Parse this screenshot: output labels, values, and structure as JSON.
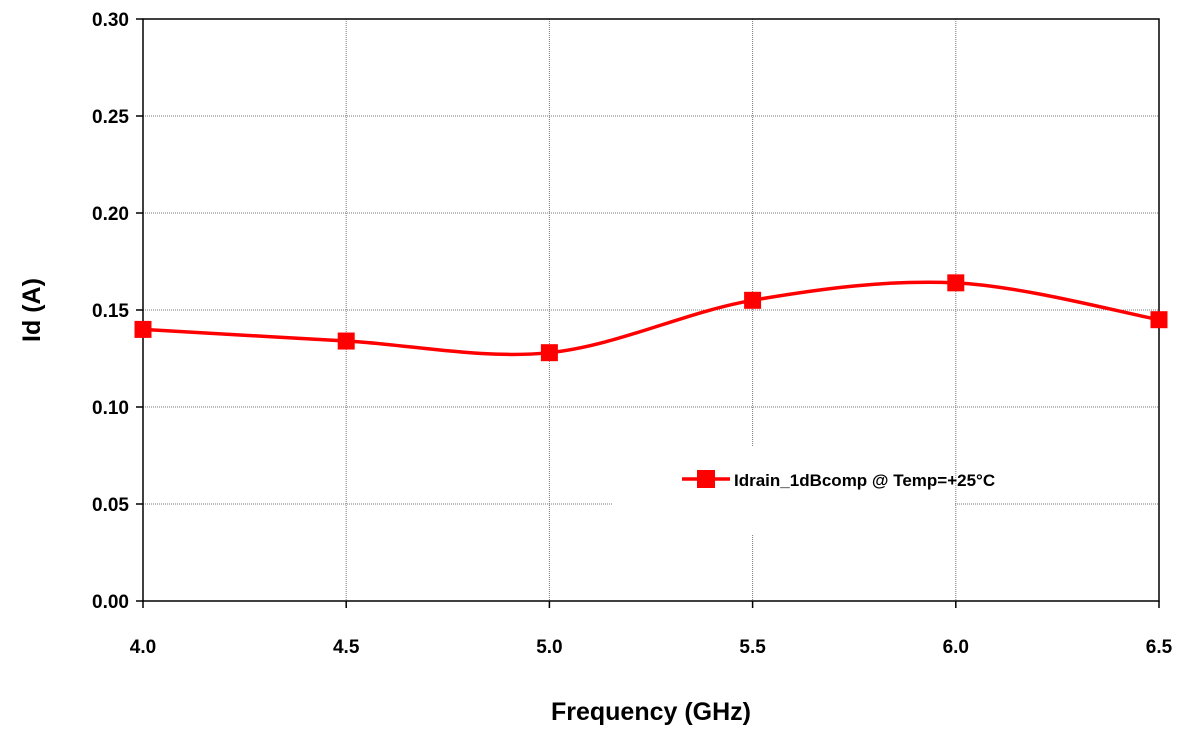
{
  "chart_data": {
    "type": "line",
    "title": "",
    "xlabel": "Frequency (GHz)",
    "ylabel": "Id (A)",
    "xlim": [
      4.0,
      6.5
    ],
    "ylim": [
      0.0,
      0.3
    ],
    "x_ticks": [
      "4.0",
      "4.5",
      "5.0",
      "5.5",
      "6.0",
      "6.5"
    ],
    "y_ticks": [
      "0.00",
      "0.05",
      "0.10",
      "0.15",
      "0.20",
      "0.25",
      "0.30"
    ],
    "grid": true,
    "legend_position": "right",
    "series": [
      {
        "name": "Idrain_1dBcomp @ Temp=+25°C",
        "color": "#ff0000",
        "marker": "square",
        "smooth": true,
        "x": [
          4.0,
          4.5,
          5.0,
          5.5,
          6.0,
          6.5
        ],
        "y": [
          0.14,
          0.134,
          0.128,
          0.155,
          0.164,
          0.145
        ]
      }
    ]
  }
}
